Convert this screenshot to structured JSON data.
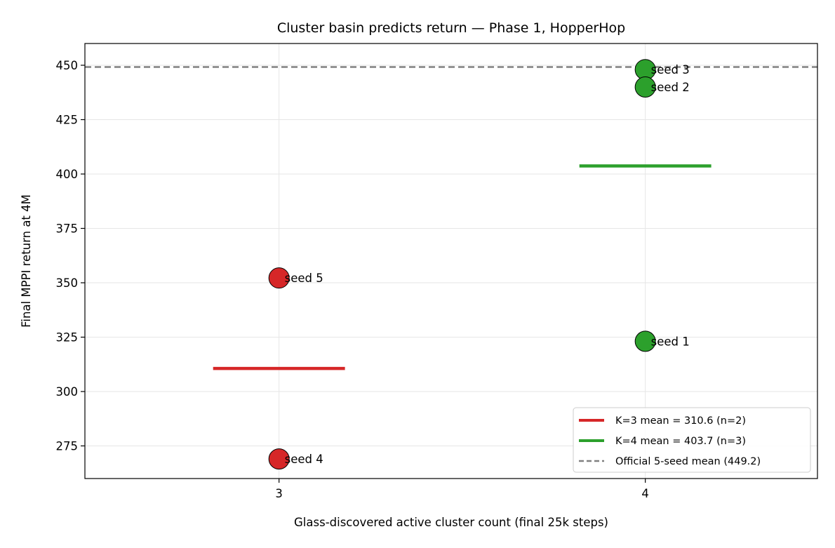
{
  "chart_data": {
    "type": "scatter",
    "title": "Cluster basin predicts return — Phase 1, HopperHop",
    "xlabel": "Glass-discovered active cluster count (final 25k steps)",
    "ylabel": "Final MPPI return at 4M",
    "xlim": [
      2.47,
      4.47
    ],
    "ylim": [
      260,
      460
    ],
    "x_ticks": [
      "3",
      "4"
    ],
    "y_ticks": [
      "275",
      "300",
      "325",
      "350",
      "375",
      "400",
      "425",
      "450"
    ],
    "grid": true,
    "legend_position": "lower-right",
    "points": [
      {
        "x": 3,
        "y": 352.2,
        "label": "seed 5",
        "color": "#d62728"
      },
      {
        "x": 3,
        "y": 269.0,
        "label": "seed 4",
        "color": "#d62728"
      },
      {
        "x": 4,
        "y": 448.0,
        "label": "seed 3",
        "color": "#2ca02c"
      },
      {
        "x": 4,
        "y": 440.0,
        "label": "seed 2",
        "color": "#2ca02c"
      },
      {
        "x": 4,
        "y": 323.1,
        "label": "seed 1",
        "color": "#2ca02c"
      }
    ],
    "mean_lines": [
      {
        "x": 3,
        "value": 310.6,
        "color": "#d62728",
        "legend": "K=3 mean = 310.6  (n=2)"
      },
      {
        "x": 4,
        "value": 403.7,
        "color": "#2ca02c",
        "legend": "K=4 mean = 403.7  (n=3)"
      }
    ],
    "reference_line": {
      "value": 449.2,
      "color": "#808080",
      "style": "dashed",
      "legend": "Official 5-seed mean (449.2)"
    }
  }
}
